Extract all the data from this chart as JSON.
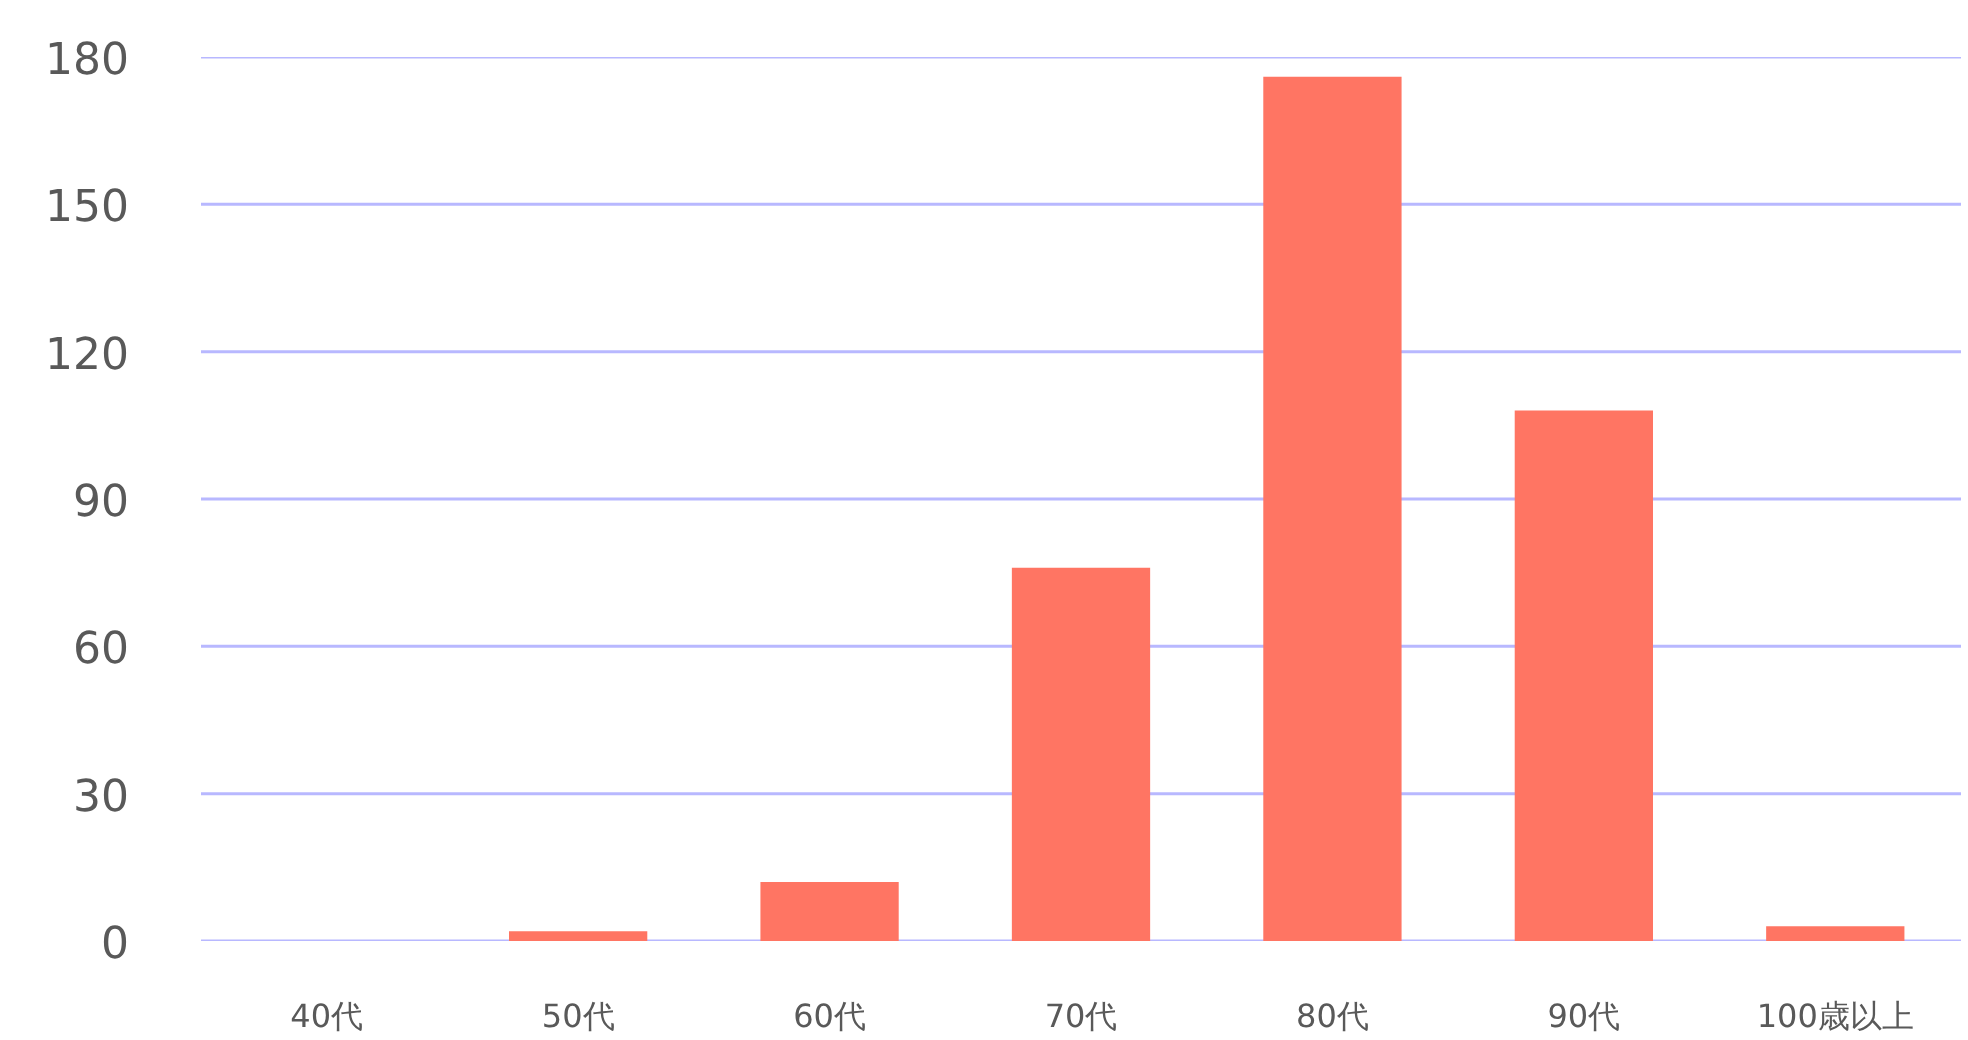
{
  "chart_data": {
    "type": "bar",
    "categories": [
      "40代",
      "50代",
      "60代",
      "70代",
      "80代",
      "90代",
      "100歳以上"
    ],
    "values": [
      0,
      2,
      12,
      76,
      176,
      108,
      3
    ],
    "color": "#ff7563",
    "ylim": [
      0,
      180
    ],
    "yticks": [
      0,
      30,
      60,
      90,
      120,
      150,
      180
    ],
    "grid": "y"
  }
}
